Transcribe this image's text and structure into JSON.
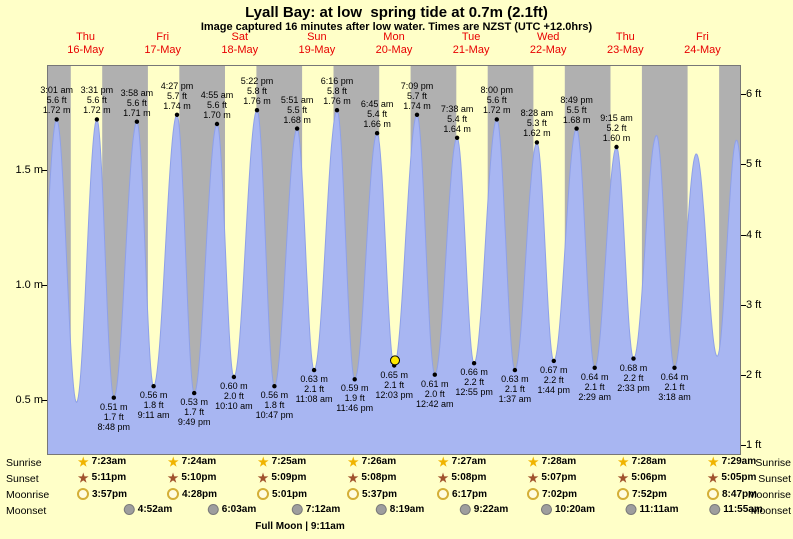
{
  "title": "Lyall Bay: at low  spring tide at 0.7m (2.1ft)",
  "subtitle": "Image captured 16 minutes after low water. Times are NZST (UTC +12.0hrs)",
  "days": [
    {
      "dow": "Thu",
      "date": "16-May"
    },
    {
      "dow": "Fri",
      "date": "17-May"
    },
    {
      "dow": "Sat",
      "date": "18-May"
    },
    {
      "dow": "Sun",
      "date": "19-May"
    },
    {
      "dow": "Mon",
      "date": "20-May"
    },
    {
      "dow": "Tue",
      "date": "21-May"
    },
    {
      "dow": "Wed",
      "date": "22-May"
    },
    {
      "dow": "Thu",
      "date": "23-May"
    },
    {
      "dow": "Fri",
      "date": "24-May"
    }
  ],
  "axes": {
    "left": [
      {
        "label": "1.5 m",
        "value": 1.5
      },
      {
        "label": "1.0 m",
        "value": 1.0
      },
      {
        "label": "0.5 m",
        "value": 0.5
      }
    ],
    "right": [
      {
        "label": "6 ft",
        "value": 6
      },
      {
        "label": "5 ft",
        "value": 5
      },
      {
        "label": "4 ft",
        "value": 4
      },
      {
        "label": "3 ft",
        "value": 3
      },
      {
        "label": "2 ft",
        "value": 2
      },
      {
        "label": "1 ft",
        "value": 1
      }
    ]
  },
  "chart_data": {
    "type": "area",
    "title": "Tide height over time",
    "x_range_hours": [
      0,
      216
    ],
    "y_range_m": [
      0.26,
      1.96
    ],
    "highs": [
      {
        "time": "3:01 am",
        "ft": "5.6 ft",
        "m": "1.72 m",
        "t": 3.02,
        "h": 1.72
      },
      {
        "time": "3:31 pm",
        "ft": "5.6 ft",
        "m": "1.72 m",
        "t": 15.52,
        "h": 1.72
      },
      {
        "time": "3:58 am",
        "ft": "5.6 ft",
        "m": "1.71 m",
        "t": 27.97,
        "h": 1.71
      },
      {
        "time": "4:27 pm",
        "ft": "5.7 ft",
        "m": "1.74 m",
        "t": 40.45,
        "h": 1.74
      },
      {
        "time": "4:55 am",
        "ft": "5.6 ft",
        "m": "1.70 m",
        "t": 52.92,
        "h": 1.7
      },
      {
        "time": "5:22 pm",
        "ft": "5.8 ft",
        "m": "1.76 m",
        "t": 65.37,
        "h": 1.76
      },
      {
        "time": "5:51 am",
        "ft": "5.5 ft",
        "m": "1.68 m",
        "t": 77.85,
        "h": 1.68
      },
      {
        "time": "6:16 pm",
        "ft": "5.8 ft",
        "m": "1.76 m",
        "t": 90.27,
        "h": 1.76
      },
      {
        "time": "6:45 am",
        "ft": "5.4 ft",
        "m": "1.66 m",
        "t": 102.75,
        "h": 1.66
      },
      {
        "time": "7:09 pm",
        "ft": "5.7 ft",
        "m": "1.74 m",
        "t": 115.15,
        "h": 1.74
      },
      {
        "time": "7:38 am",
        "ft": "5.4 ft",
        "m": "1.64 m",
        "t": 127.63,
        "h": 1.64
      },
      {
        "time": "8:00 pm",
        "ft": "5.6 ft",
        "m": "1.72 m",
        "t": 140.0,
        "h": 1.72
      },
      {
        "time": "8:28 am",
        "ft": "5.3 ft",
        "m": "1.62 m",
        "t": 152.47,
        "h": 1.62
      },
      {
        "time": "8:49 pm",
        "ft": "5.5 ft",
        "m": "1.68 m",
        "t": 164.82,
        "h": 1.68
      },
      {
        "time": "9:15 am",
        "ft": "5.2 ft",
        "m": "1.60 m",
        "t": 177.25,
        "h": 1.6
      }
    ],
    "lows": [
      {
        "m": "0.51 m",
        "ft": "1.7 ft",
        "time": "8:48 pm",
        "t": 20.8,
        "h": 0.51
      },
      {
        "m": "0.56 m",
        "ft": "1.8 ft",
        "time": "9:11 am",
        "t": 33.18,
        "h": 0.56
      },
      {
        "m": "0.53 m",
        "ft": "1.7 ft",
        "time": "9:49 pm",
        "t": 45.82,
        "h": 0.53
      },
      {
        "m": "0.60 m",
        "ft": "2.0 ft",
        "time": "10:10 am",
        "t": 58.17,
        "h": 0.6
      },
      {
        "m": "0.56 m",
        "ft": "1.8 ft",
        "time": "10:47 pm",
        "t": 70.78,
        "h": 0.56
      },
      {
        "m": "0.63 m",
        "ft": "2.1 ft",
        "time": "11:08 am",
        "t": 83.13,
        "h": 0.63
      },
      {
        "m": "0.59 m",
        "ft": "1.9 ft",
        "time": "11:46 pm",
        "t": 95.77,
        "h": 0.59
      },
      {
        "m": "0.65 m",
        "ft": "2.1 ft",
        "time": "12:03 pm",
        "t": 108.05,
        "h": 0.65
      },
      {
        "m": "0.61 m",
        "ft": "2.0 ft",
        "time": "12:42 am",
        "t": 120.7,
        "h": 0.61
      },
      {
        "m": "0.66 m",
        "ft": "2.2 ft",
        "time": "12:55 pm",
        "t": 132.92,
        "h": 0.66
      },
      {
        "m": "0.63 m",
        "ft": "2.1 ft",
        "time": "1:37 am",
        "t": 145.62,
        "h": 0.63
      },
      {
        "m": "0.67 m",
        "ft": "2.2 ft",
        "time": "1:44 pm",
        "t": 157.73,
        "h": 0.67
      },
      {
        "m": "0.64 m",
        "ft": "2.1 ft",
        "time": "2:29 am",
        "t": 170.48,
        "h": 0.64
      },
      {
        "m": "0.68 m",
        "ft": "2.2 ft",
        "time": "2:33 pm",
        "t": 182.55,
        "h": 0.68
      },
      {
        "m": "0.64 m",
        "ft": "2.1 ft",
        "time": "3:18 am",
        "t": 195.3,
        "h": 0.64
      }
    ],
    "unlabeled_extremes": [
      {
        "t": -3.6,
        "h": 0.5
      },
      {
        "t": 9.2,
        "h": 0.49
      },
      {
        "t": 189.7,
        "h": 1.65
      },
      {
        "t": 202.1,
        "h": 1.57
      },
      {
        "t": 208.6,
        "h": 0.69
      },
      {
        "t": 214.6,
        "h": 1.63
      },
      {
        "t": 220.5,
        "h": 0.62
      }
    ],
    "current": {
      "t": 108.32,
      "h": 0.655
    },
    "night": {
      "sunset_hour": 17.17,
      "sunrise_hour": 7.4
    }
  },
  "astro": {
    "rows": [
      {
        "name": "sunrise",
        "label": "Sunrise",
        "times": [
          "7:23am",
          "7:24am",
          "7:25am",
          "7:26am",
          "7:27am",
          "7:28am",
          "7:28am",
          "7:29am"
        ]
      },
      {
        "name": "sunset",
        "label": "Sunset",
        "times": [
          "5:11pm",
          "5:10pm",
          "5:09pm",
          "5:08pm",
          "5:08pm",
          "5:07pm",
          "5:06pm",
          "5:05pm"
        ]
      },
      {
        "name": "moonrise",
        "label": "Moonrise",
        "times": [
          "3:57pm",
          "4:28pm",
          "5:01pm",
          "5:37pm",
          "6:17pm",
          "7:02pm",
          "7:52pm",
          "8:47pm"
        ]
      },
      {
        "name": "moonset",
        "label": "Moonset",
        "times": [
          "4:52am",
          "6:03am",
          "7:12am",
          "8:19am",
          "9:22am",
          "10:20am",
          "11:11am",
          "11:55am"
        ]
      }
    ],
    "footer": "Full Moon | 9:11am"
  },
  "colors": {
    "background": "#ffffc8",
    "night_band": "#b0b0b0",
    "tide_fill": "#a8b6f2",
    "tide_stroke": "#8ea0e8",
    "day_label": "#e80000",
    "current_dot": "#ffe800",
    "dot": "#000000"
  }
}
